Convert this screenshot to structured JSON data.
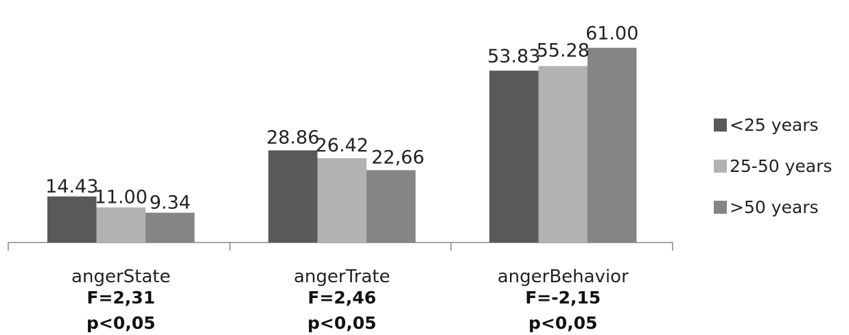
{
  "chart_data": {
    "type": "bar",
    "categories": [
      "angerState",
      "angerTrate",
      "angerBehavior"
    ],
    "series": [
      {
        "name": "<25 years",
        "values": [
          14.43,
          28.86,
          53.83
        ],
        "labels": [
          "14.43",
          "28.86",
          "53.83"
        ],
        "color": "#595959"
      },
      {
        "name": "25-50 years",
        "values": [
          11.0,
          26.42,
          55.28
        ],
        "labels": [
          "11.00",
          "26.42",
          "55.28"
        ],
        "color": "#b2b2b2"
      },
      {
        "name": ">50 years",
        "values": [
          9.34,
          22.66,
          61.0
        ],
        "labels": [
          "9.34",
          "22,66",
          "61.00"
        ],
        "color": "#858585"
      }
    ],
    "stats": [
      {
        "f": "F=2,31",
        "p": "p<0,05"
      },
      {
        "f": "F=2,46",
        "p": "p<0,05"
      },
      {
        "f": "F=-2,15",
        "p": "p<0,05"
      }
    ],
    "ylim": [
      0,
      65
    ],
    "grid": false,
    "legend_position": "right"
  }
}
